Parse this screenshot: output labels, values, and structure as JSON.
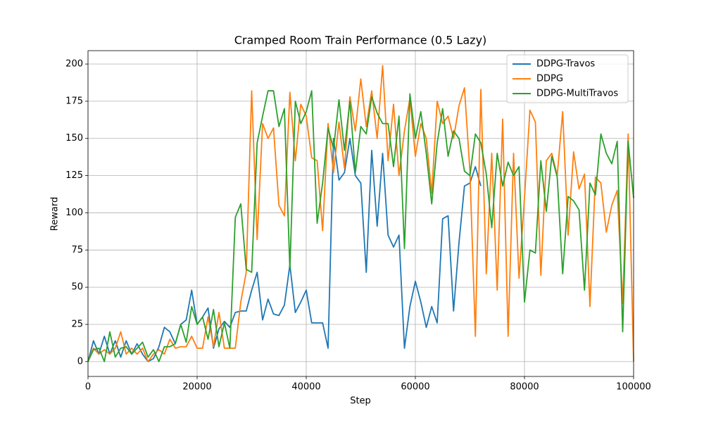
{
  "chart_data": {
    "type": "line",
    "title": "Cramped Room Train Performance (0.5 Lazy)",
    "x_label": "Step",
    "y_label": "Reward",
    "x": [
      0,
      1000,
      2000,
      3000,
      4000,
      5000,
      6000,
      7000,
      8000,
      9000,
      10000,
      11000,
      12000,
      13000,
      14000,
      15000,
      16000,
      17000,
      18000,
      19000,
      20000,
      21000,
      22000,
      23000,
      24000,
      25000,
      26000,
      27000,
      28000,
      29000,
      30000,
      31000,
      32000,
      33000,
      34000,
      35000,
      36000,
      37000,
      38000,
      39000,
      40000,
      41000,
      42000,
      43000,
      44000,
      45000,
      46000,
      47000,
      48000,
      49000,
      50000,
      51000,
      52000,
      53000,
      54000,
      55000,
      56000,
      57000,
      58000,
      59000,
      60000,
      61000,
      62000,
      63000,
      64000,
      65000,
      66000,
      67000,
      68000,
      69000,
      70000,
      71000,
      72000,
      73000,
      74000,
      75000,
      76000,
      77000,
      78000,
      79000,
      80000,
      81000,
      82000,
      83000,
      84000,
      85000,
      86000,
      87000,
      88000,
      89000,
      90000,
      91000,
      92000,
      93000,
      94000,
      95000,
      96000,
      97000,
      98000,
      99000,
      100000
    ],
    "series": [
      {
        "name": "DDPG-Travos",
        "color": "#1f77b4",
        "values": [
          0,
          14,
          5,
          17,
          5,
          14,
          3,
          14,
          5,
          12,
          5,
          0,
          2,
          10,
          23,
          20,
          12,
          25,
          28,
          48,
          25,
          30,
          36,
          9,
          22,
          27,
          23,
          33,
          34,
          34,
          48,
          60,
          28,
          42,
          32,
          31,
          38,
          65,
          33,
          40,
          48,
          26,
          26,
          26,
          9,
          150,
          122,
          127,
          150,
          125,
          120,
          60,
          142,
          91,
          140,
          85,
          77,
          85,
          9,
          37,
          54,
          40,
          23,
          37,
          26,
          96,
          98,
          34,
          80,
          118,
          120,
          131,
          118,
          null,
          null,
          null,
          null,
          null,
          null,
          null,
          null,
          null,
          null,
          null,
          null,
          null,
          null,
          null,
          null,
          null,
          null,
          null,
          null,
          null,
          null,
          null,
          null,
          null,
          null,
          null,
          null
        ]
      },
      {
        "name": "DDPG",
        "color": "#ff7f0e",
        "values": [
          0,
          9,
          5,
          8,
          5,
          9,
          20,
          5,
          9,
          5,
          9,
          0,
          5,
          8,
          5,
          15,
          9,
          10,
          10,
          17,
          9,
          9,
          30,
          10,
          33,
          9,
          9,
          9,
          40,
          60,
          182,
          82,
          160,
          150,
          157,
          105,
          98,
          181,
          135,
          173,
          165,
          137,
          135,
          88,
          160,
          127,
          161,
          130,
          178,
          155,
          190,
          158,
          182,
          150,
          199,
          135,
          173,
          125,
          155,
          177,
          138,
          160,
          150,
          113,
          175,
          160,
          165,
          150,
          172,
          184,
          128,
          17,
          183,
          59,
          140,
          48,
          163,
          17,
          140,
          56,
          110,
          169,
          161,
          58,
          135,
          140,
          125,
          168,
          85,
          141,
          116,
          126,
          37,
          124,
          120,
          87,
          105,
          115,
          39,
          153,
          0
        ]
      },
      {
        "name": "DDPG-MultiTravos",
        "color": "#2ca02c",
        "values": [
          0,
          8,
          9,
          0,
          20,
          3,
          9,
          10,
          5,
          9,
          13,
          3,
          8,
          0,
          10,
          10,
          12,
          25,
          13,
          37,
          25,
          30,
          15,
          35,
          10,
          26,
          9,
          97,
          106,
          62,
          60,
          147,
          165,
          182,
          182,
          158,
          170,
          62,
          175,
          160,
          168,
          182,
          93,
          120,
          157,
          143,
          176,
          142,
          175,
          127,
          158,
          153,
          178,
          167,
          160,
          160,
          131,
          165,
          76,
          180,
          150,
          168,
          140,
          106,
          147,
          170,
          138,
          155,
          150,
          128,
          125,
          153,
          147,
          126,
          90,
          140,
          118,
          134,
          125,
          131,
          40,
          75,
          73,
          135,
          101,
          138,
          124,
          59,
          111,
          108,
          102,
          48,
          120,
          112,
          153,
          140,
          133,
          148,
          20,
          148,
          110
        ]
      }
    ],
    "xlim": [
      0,
      100000
    ],
    "xticks": [
      0,
      20000,
      40000,
      60000,
      80000,
      100000
    ],
    "ylim": [
      -10,
      209
    ],
    "yticks": [
      0,
      25,
      50,
      75,
      100,
      125,
      150,
      175,
      200
    ],
    "grid": true,
    "legend": "upper right"
  }
}
